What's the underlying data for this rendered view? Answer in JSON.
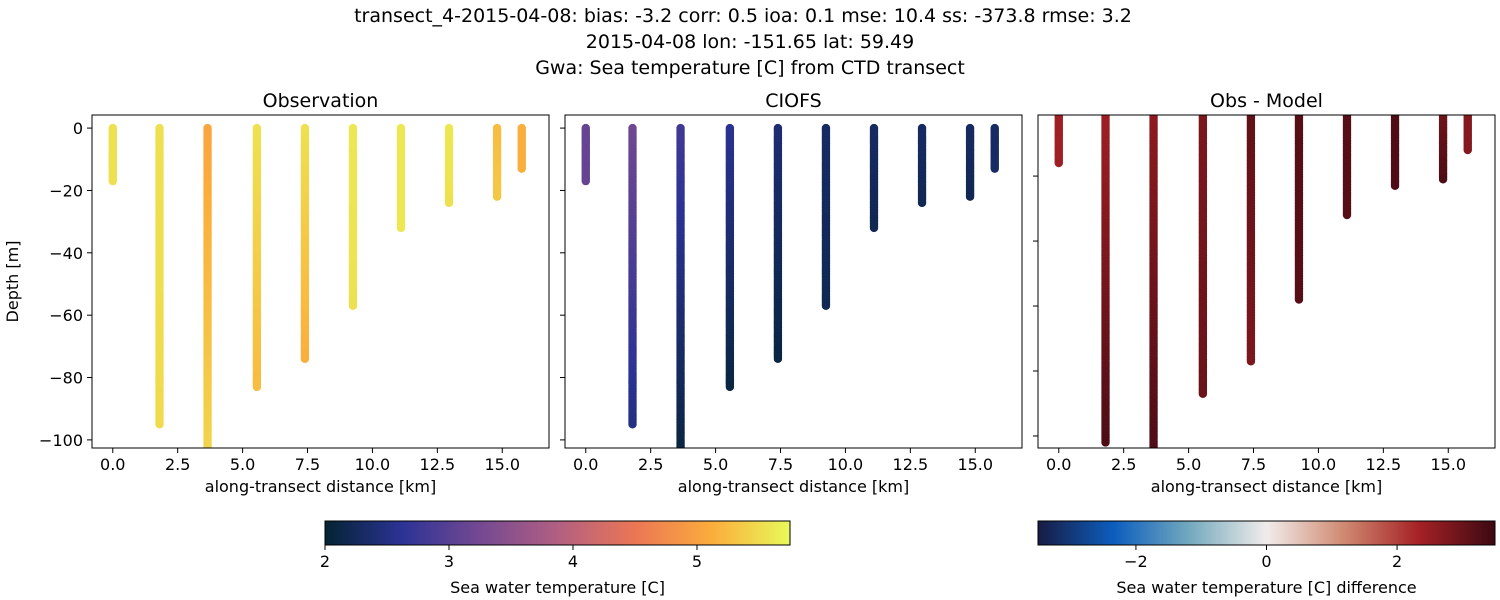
{
  "title": {
    "line1": "transect_4-2015-04-08: bias: -3.2  corr: 0.5  ioa: 0.1  mse: 10.4  ss: -373.8  rmse: 3.2",
    "line2": "2015-04-08 lon: -151.65 lat: 59.49",
    "line3": "Gwa: Sea temperature [C] from CTD transect"
  },
  "chart_data": [
    {
      "type": "scatter",
      "title": "Observation",
      "xlabel": "along-transect distance [km]",
      "ylabel": "Depth [m]",
      "xlim": [
        -0.8,
        16.8
      ],
      "ylim": [
        -102.6,
        4.2
      ],
      "xticks": [
        0,
        2.5,
        5,
        7.5,
        10,
        12.5,
        15
      ],
      "xtick_labels": [
        "0.0",
        "2.5",
        "5.0",
        "7.5",
        "10.0",
        "12.5",
        "15.0"
      ],
      "yticks": [
        0,
        -20,
        -40,
        -60,
        -80,
        -100
      ],
      "ytick_labels": [
        "0",
        "−20",
        "−40",
        "−60",
        "−80",
        "−100"
      ],
      "colormap": "thermal",
      "clim": [
        2,
        5.7
      ],
      "casts": [
        {
          "x": 0,
          "depth": 17,
          "top": 5.5,
          "bottom": 5.5
        },
        {
          "x": 1.8,
          "depth": 95,
          "top": 5.5,
          "bottom": 5.45
        },
        {
          "x": 3.65,
          "depth": 103,
          "top": 5.0,
          "bottom": 5.4
        },
        {
          "x": 5.55,
          "depth": 83,
          "top": 5.5,
          "bottom": 5.2
        },
        {
          "x": 7.4,
          "depth": 74,
          "top": 5.5,
          "bottom": 5.1
        },
        {
          "x": 9.25,
          "depth": 57,
          "top": 5.55,
          "bottom": 5.5
        },
        {
          "x": 11.1,
          "depth": 32,
          "top": 5.55,
          "bottom": 5.55
        },
        {
          "x": 12.95,
          "depth": 24,
          "top": 5.55,
          "bottom": 5.5
        },
        {
          "x": 14.8,
          "depth": 22,
          "top": 5.2,
          "bottom": 5.3
        },
        {
          "x": 15.75,
          "depth": 13,
          "top": 5.1,
          "bottom": 5.1
        }
      ]
    },
    {
      "type": "scatter",
      "title": "CIOFS",
      "xlabel": "along-transect distance [km]",
      "xlim": [
        -0.8,
        16.8
      ],
      "ylim": [
        -102.6,
        4.2
      ],
      "xticks": [
        0,
        2.5,
        5,
        7.5,
        10,
        12.5,
        15
      ],
      "xtick_labels": [
        "0.0",
        "2.5",
        "5.0",
        "7.5",
        "10.0",
        "12.5",
        "15.0"
      ],
      "colormap": "thermal",
      "clim": [
        2,
        5.7
      ],
      "casts": [
        {
          "x": 0,
          "depth": 17,
          "top": 3.1,
          "bottom": 3.1
        },
        {
          "x": 1.8,
          "depth": 95,
          "top": 3.2,
          "bottom": 2.5
        },
        {
          "x": 3.65,
          "depth": 103,
          "top": 2.8,
          "bottom": 2.1
        },
        {
          "x": 5.55,
          "depth": 83,
          "top": 2.6,
          "bottom": 2.1
        },
        {
          "x": 7.4,
          "depth": 74,
          "top": 2.4,
          "bottom": 2.1
        },
        {
          "x": 9.25,
          "depth": 57,
          "top": 2.3,
          "bottom": 2.2
        },
        {
          "x": 11.1,
          "depth": 32,
          "top": 2.3,
          "bottom": 2.2
        },
        {
          "x": 12.95,
          "depth": 24,
          "top": 2.3,
          "bottom": 2.2
        },
        {
          "x": 14.8,
          "depth": 22,
          "top": 2.3,
          "bottom": 2.2
        },
        {
          "x": 15.75,
          "depth": 13,
          "top": 2.3,
          "bottom": 2.3
        }
      ]
    },
    {
      "type": "scatter",
      "title": "Obs - Model",
      "xlabel": "along-transect distance [km]",
      "xlim": [
        -0.8,
        16.8
      ],
      "ylim": [
        -103.7,
        -1.2
      ],
      "xticks": [
        0,
        2.5,
        5,
        7.5,
        10,
        12.5,
        15
      ],
      "xtick_labels": [
        "0.0",
        "2.5",
        "5.0",
        "7.5",
        "10.0",
        "12.5",
        "15.0"
      ],
      "colormap": "balance",
      "clim": [
        -3.5,
        3.5
      ],
      "casts": [
        {
          "x": 0,
          "depth": 16,
          "top": 2.4,
          "bottom": 2.4
        },
        {
          "x": 1.8,
          "depth": 102,
          "top": 2.4,
          "bottom": 3.3
        },
        {
          "x": 3.65,
          "depth": 106,
          "top": 2.6,
          "bottom": 3.3
        },
        {
          "x": 5.55,
          "depth": 87,
          "top": 2.8,
          "bottom": 3.0
        },
        {
          "x": 7.4,
          "depth": 77,
          "top": 3.1,
          "bottom": 2.8
        },
        {
          "x": 9.25,
          "depth": 58,
          "top": 3.2,
          "bottom": 3.2
        },
        {
          "x": 11.1,
          "depth": 32,
          "top": 3.2,
          "bottom": 3.2
        },
        {
          "x": 12.95,
          "depth": 23,
          "top": 3.3,
          "bottom": 3.3
        },
        {
          "x": 14.8,
          "depth": 21,
          "top": 2.9,
          "bottom": 3.3
        },
        {
          "x": 15.75,
          "depth": 12,
          "top": 2.7,
          "bottom": 2.7
        }
      ]
    }
  ],
  "colorbars": [
    {
      "label": "Sea water temperature [C]",
      "range": [
        2,
        5.75
      ],
      "ticks": [
        2,
        3,
        4,
        5
      ],
      "tick_labels": [
        "2",
        "3",
        "4",
        "5"
      ],
      "colormap": "thermal"
    },
    {
      "label": "Sea water temperature [C] difference",
      "range": [
        -3.5,
        3.5
      ],
      "ticks": [
        -2,
        0,
        2
      ],
      "tick_labels": [
        "−2",
        "0",
        "2"
      ],
      "colormap": "balance"
    }
  ],
  "colormaps": {
    "thermal": [
      "#042333",
      "#2c3395",
      "#744992",
      "#b15f82",
      "#eb7655",
      "#fbad3c",
      "#e8fa5b"
    ],
    "balance": [
      "#181c43",
      "#0c5ebe",
      "#75aabe",
      "#f1eceb",
      "#d08b73",
      "#a52125",
      "#3c0912"
    ]
  }
}
